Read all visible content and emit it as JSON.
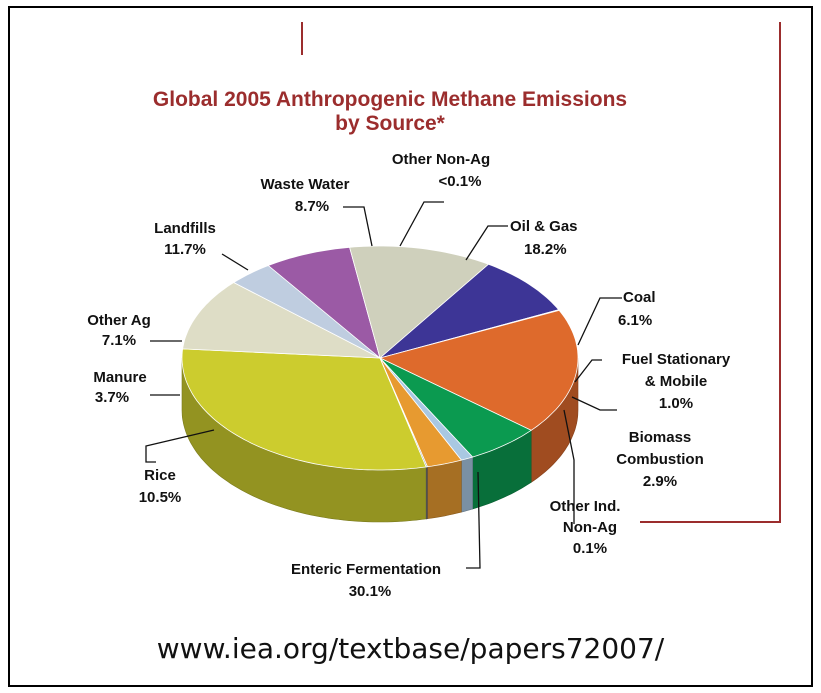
{
  "chart_data": {
    "type": "pie",
    "title_lines": [
      "Global 2005 Anthropogenic Methane Emissions",
      "by Source*"
    ],
    "slices": [
      {
        "key": "ent",
        "name": "Enteric Fermentation",
        "label": "30.1%",
        "value": 30.1,
        "color": "#cccc2e"
      },
      {
        "key": "rice",
        "name": "Rice",
        "label": "10.5%",
        "value": 10.5,
        "color": "#deddc6"
      },
      {
        "key": "man",
        "name": "Manure",
        "label": "3.7%",
        "value": 3.7,
        "color": "#bfcde0"
      },
      {
        "key": "oag",
        "name": "Other Ag",
        "label": "7.1%",
        "value": 7.1,
        "color": "#9b5aa5"
      },
      {
        "key": "land",
        "name": "Landfills",
        "label": "11.7%",
        "value": 11.7,
        "color": "#cfd0bc"
      },
      {
        "key": "ww",
        "name": "Waste Water",
        "label": "8.7%",
        "value": 8.7,
        "color": "#3d3596"
      },
      {
        "key": "onag",
        "name": "Other Non-Ag",
        "label": "<0.1%",
        "value": 0.1,
        "color": "#a7a7a7"
      },
      {
        "key": "og",
        "name": "Oil & Gas",
        "label": "18.2%",
        "value": 18.2,
        "color": "#de6a2c"
      },
      {
        "key": "coal",
        "name": "Coal",
        "label": "6.1%",
        "value": 6.1,
        "color": "#0b9a50"
      },
      {
        "key": "fuel",
        "name": "Fuel Stationary & Mobile",
        "label": "1.0%",
        "value": 1.0,
        "color": "#a9c8e2"
      },
      {
        "key": "bio",
        "name": "Biomass Combustion",
        "label": "2.9%",
        "value": 2.9,
        "color": "#e79a30"
      },
      {
        "key": "oind",
        "name": "Other Ind. Non-Ag",
        "label": "0.1%",
        "value": 0.1,
        "color": "#7a7a7a"
      }
    ]
  },
  "labels": {
    "landfills": [
      "Landfills",
      "11.7%"
    ],
    "waste_water": [
      "Waste Water",
      "8.7%"
    ],
    "other_non_ag": [
      "Other Non-Ag",
      "<0.1%"
    ],
    "oil_gas": [
      "Oil & Gas",
      "18.2%"
    ],
    "other_ag": [
      "Other Ag",
      "7.1%"
    ],
    "coal": [
      "Coal",
      "6.1%"
    ],
    "fuel": [
      "Fuel Stationary",
      "& Mobile",
      "1.0%"
    ],
    "manure": [
      "Manure",
      "3.7%"
    ],
    "biomass": [
      "Biomass",
      "Combustion",
      "2.9%"
    ],
    "rice": [
      "Rice",
      "10.5%"
    ],
    "other_ind": [
      "Other Ind.",
      "Non-Ag",
      "0.1%"
    ],
    "enteric": [
      "Enteric Fermentation",
      "30.1%"
    ]
  },
  "source_url": "www.iea.org/textbase/papers72007/"
}
